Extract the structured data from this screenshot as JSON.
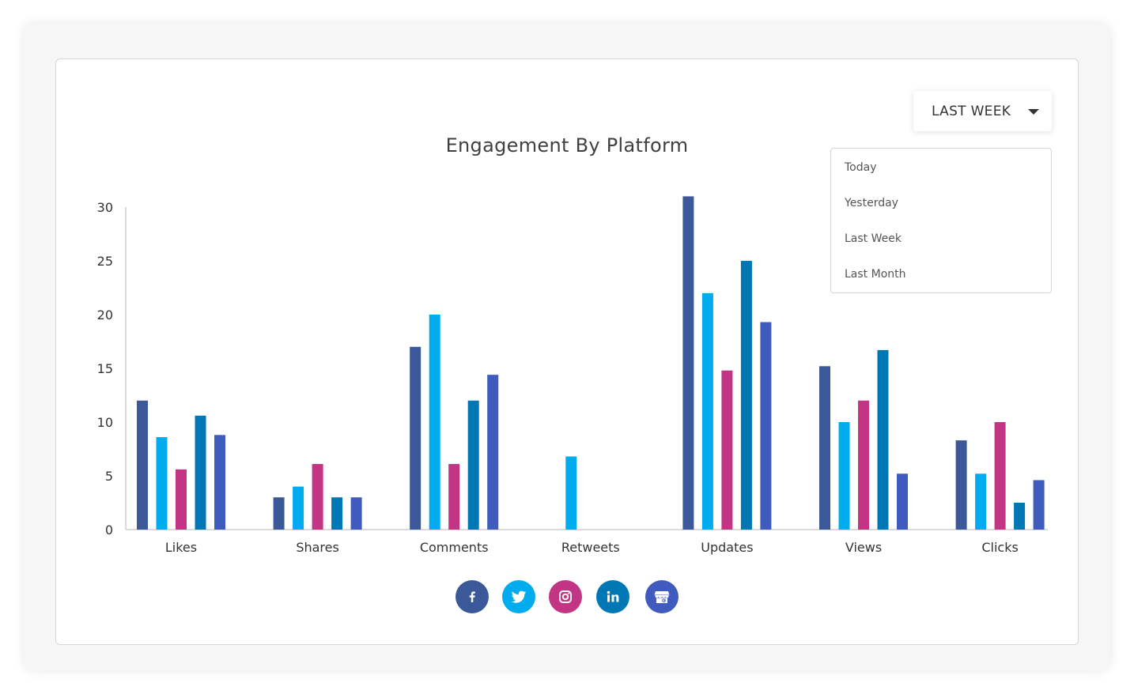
{
  "dropdown": {
    "selected": "LAST WEEK",
    "options": [
      "Today",
      "Yesterday",
      "Last Week",
      "Last Month"
    ]
  },
  "legend_icons": [
    {
      "name": "facebook-icon",
      "color": "#3b5998"
    },
    {
      "name": "twitter-icon",
      "color": "#00acee"
    },
    {
      "name": "instagram-icon",
      "color": "#c13584"
    },
    {
      "name": "linkedin-icon",
      "color": "#0077b5"
    },
    {
      "name": "google-my-business-icon",
      "color": "#3f5bbd"
    }
  ],
  "chart_data": {
    "type": "bar",
    "title": "Engagement By Platform",
    "categories": [
      "Likes",
      "Shares",
      "Comments",
      "Retweets",
      "Updates",
      "Views",
      "Clicks"
    ],
    "ylim": [
      0,
      30
    ],
    "yticks": [
      0,
      5,
      10,
      15,
      20,
      25,
      30
    ],
    "grid": false,
    "series": [
      {
        "color": "#3b5998",
        "values": [
          12,
          3,
          17,
          null,
          31,
          15.2,
          8.3
        ]
      },
      {
        "color": "#00acee",
        "values": [
          8.6,
          4,
          20,
          6.8,
          22,
          10,
          5.2
        ]
      },
      {
        "color": "#c13584",
        "values": [
          5.6,
          6.1,
          6.1,
          null,
          14.8,
          12,
          10
        ]
      },
      {
        "color": "#0077b5",
        "values": [
          10.6,
          3,
          12,
          null,
          25,
          16.7,
          2.5
        ]
      },
      {
        "color": "#3f5bbd",
        "values": [
          8.8,
          3,
          14.4,
          null,
          19.3,
          5.2,
          4.6
        ]
      }
    ]
  }
}
